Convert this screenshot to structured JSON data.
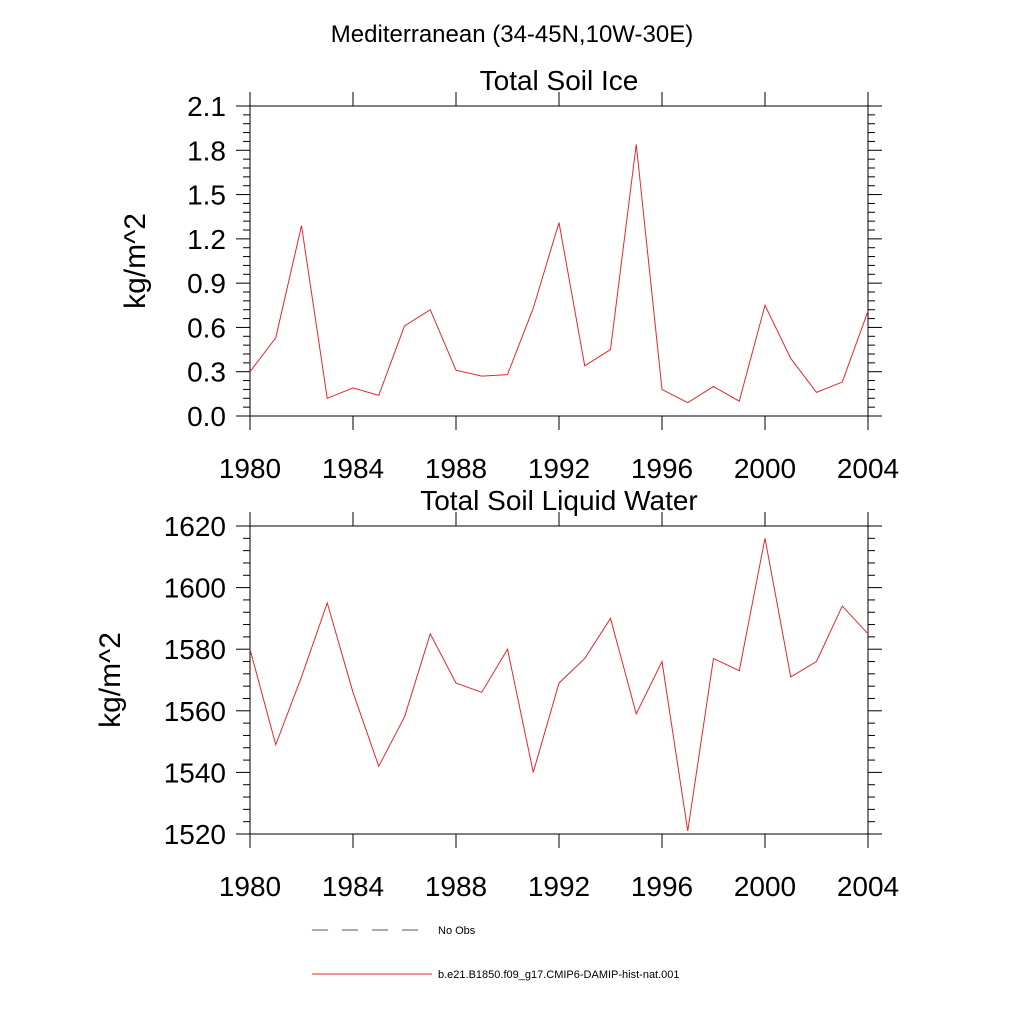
{
  "figure_title": "Mediterranean (34-45N,10W-30E)",
  "legend": {
    "entries": [
      {
        "label": "No Obs",
        "style": "dashed",
        "color": "#4a5a7a"
      },
      {
        "label": "b.e21.B1850.f09_g17.CMIP6-DAMIP-hist-nat.001",
        "style": "solid",
        "color": "#e8262a"
      }
    ]
  },
  "chart_data": [
    {
      "type": "line",
      "title": "Total Soil Ice",
      "xlabel": "",
      "ylabel": "kg/m^2",
      "xlim": [
        1980,
        2004
      ],
      "ylim": [
        0.0,
        2.1
      ],
      "xticks": [
        1980,
        1984,
        1988,
        1992,
        1996,
        2000,
        2004
      ],
      "xtick_labels": [
        "1980",
        "1984",
        "1988",
        "1992",
        "1996",
        "2000",
        "2004"
      ],
      "yticks": [
        0.0,
        0.3,
        0.6,
        0.9,
        1.2,
        1.5,
        1.8,
        2.1
      ],
      "ytick_labels": [
        "0.0",
        "0.3",
        "0.6",
        "0.9",
        "1.2",
        "1.5",
        "1.8",
        "2.1"
      ],
      "grid": false,
      "series": [
        {
          "color": "#e8262a",
          "x": [
            1980,
            1981,
            1982,
            1983,
            1984,
            1985,
            1986,
            1987,
            1988,
            1989,
            1990,
            1991,
            1992,
            1993,
            1994,
            1995,
            1996,
            1997,
            1998,
            1999,
            2000,
            2001,
            2002,
            2003,
            2004
          ],
          "y": [
            0.3,
            0.53,
            1.29,
            0.12,
            0.19,
            0.14,
            0.61,
            0.72,
            0.31,
            0.27,
            0.28,
            0.73,
            1.31,
            0.34,
            0.45,
            1.84,
            0.18,
            0.09,
            0.2,
            0.1,
            0.75,
            0.39,
            0.16,
            0.23,
            0.71
          ]
        }
      ]
    },
    {
      "type": "line",
      "title": "Total Soil Liquid Water",
      "xlabel": "",
      "ylabel": "kg/m^2",
      "xlim": [
        1980,
        2004
      ],
      "ylim": [
        1520,
        1620
      ],
      "xticks": [
        1980,
        1984,
        1988,
        1992,
        1996,
        2000,
        2004
      ],
      "xtick_labels": [
        "1980",
        "1984",
        "1988",
        "1992",
        "1996",
        "2000",
        "2004"
      ],
      "yticks": [
        1520,
        1540,
        1560,
        1580,
        1600,
        1620
      ],
      "ytick_labels": [
        "1520",
        "1540",
        "1560",
        "1580",
        "1600",
        "1620"
      ],
      "grid": false,
      "series": [
        {
          "color": "#e8262a",
          "x": [
            1980,
            1981,
            1982,
            1983,
            1984,
            1985,
            1986,
            1987,
            1988,
            1989,
            1990,
            1991,
            1992,
            1993,
            1994,
            1995,
            1996,
            1997,
            1998,
            1999,
            2000,
            2001,
            2002,
            2003,
            2004
          ],
          "y": [
            1580,
            1549,
            1571,
            1595,
            1566,
            1542,
            1558,
            1585,
            1569,
            1566,
            1580,
            1540,
            1569,
            1577,
            1590,
            1559,
            1576,
            1521,
            1577,
            1573,
            1616,
            1571,
            1576,
            1594,
            1585
          ]
        }
      ]
    }
  ]
}
